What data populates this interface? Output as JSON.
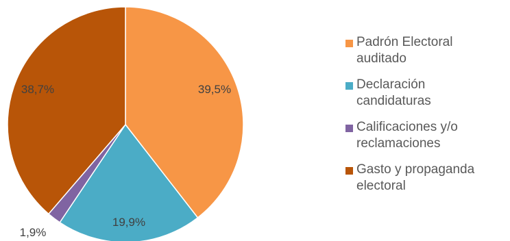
{
  "chart_data": {
    "type": "pie",
    "title": "",
    "categories": [
      "Padrón Electoral auditado",
      "Declaración candidaturas",
      "Calificaciones y/o reclamaciones",
      "Gasto y propaganda electoral"
    ],
    "values": [
      39.5,
      19.9,
      1.9,
      38.7
    ],
    "labels": [
      "39,5%",
      "19,9%",
      "1,9%",
      "38,7%"
    ],
    "colors": [
      "#F79646",
      "#4BACC6",
      "#8064A2",
      "#B85508"
    ],
    "start_angle": "12 o'clock",
    "direction": "clockwise",
    "legend_position": "right"
  },
  "legend": {
    "items": [
      {
        "label_line1": "Padrón Electoral",
        "label_line2": "auditado",
        "color": "#F79646"
      },
      {
        "label_line1": "Declaración",
        "label_line2": "candidaturas",
        "color": "#4BACC6"
      },
      {
        "label_line1": "Calificaciones y/o",
        "label_line2": "reclamaciones",
        "color": "#8064A2"
      },
      {
        "label_line1": "Gasto y propaganda",
        "label_line2": "electoral",
        "color": "#B85508"
      }
    ]
  }
}
